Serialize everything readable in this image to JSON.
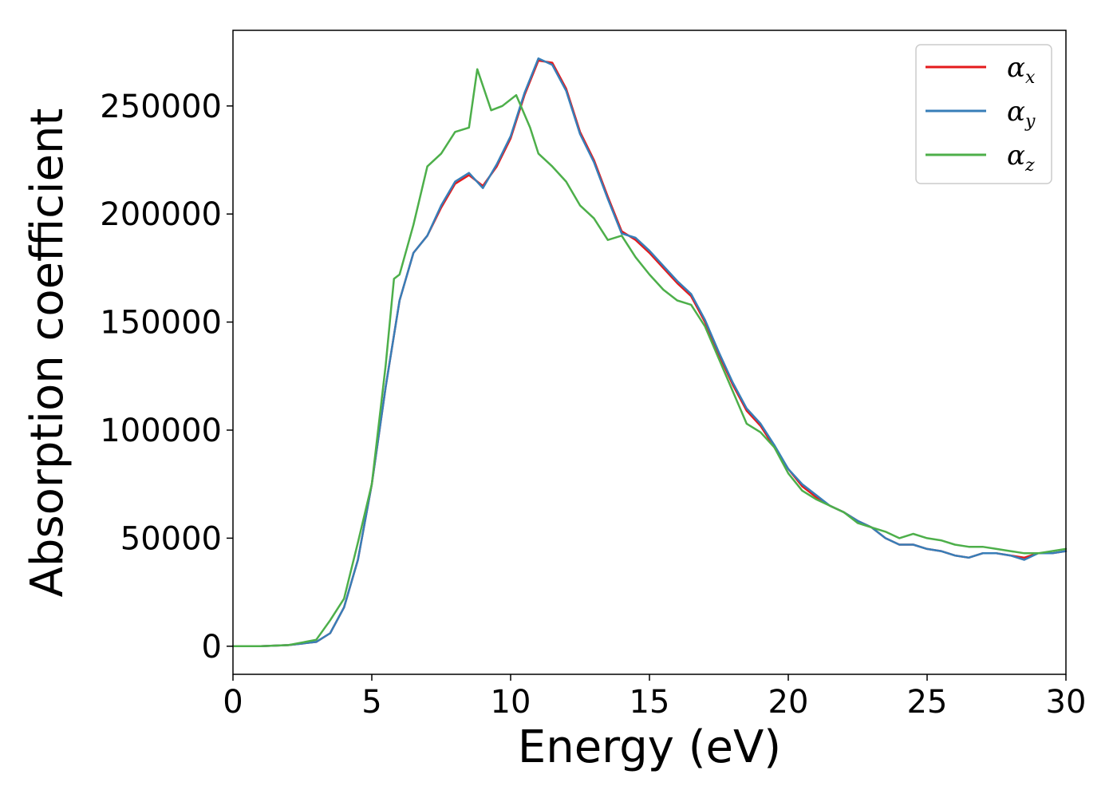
{
  "chart_data": {
    "type": "line",
    "title": "",
    "xlabel": "Energy (eV)",
    "ylabel": "Absorption coefficient",
    "xlim": [
      0,
      30
    ],
    "ylim": [
      -13000,
      285000
    ],
    "xticks": [
      0,
      5,
      10,
      15,
      20,
      25,
      30
    ],
    "yticks": [
      0,
      50000,
      100000,
      150000,
      200000,
      250000
    ],
    "grid": false,
    "legend_position": "top-right",
    "series": [
      {
        "name": "α",
        "subscript": "x",
        "color": "#e41a1c",
        "x": [
          0,
          1,
          2,
          3,
          3.5,
          4,
          4.5,
          5,
          5.5,
          6,
          6.5,
          7,
          7.5,
          8,
          8.5,
          9,
          9.5,
          10,
          10.5,
          11,
          11.5,
          12,
          12.5,
          13,
          13.5,
          14,
          14.5,
          15,
          15.5,
          16,
          16.5,
          17,
          17.5,
          18,
          18.5,
          19,
          19.5,
          20,
          20.5,
          21,
          21.5,
          22,
          22.5,
          23,
          23.5,
          24,
          24.5,
          25,
          25.5,
          26,
          26.5,
          27,
          27.5,
          28,
          28.5,
          29,
          29.5,
          30
        ],
        "y": [
          0,
          0,
          500,
          2000,
          6000,
          18000,
          40000,
          75000,
          120000,
          160000,
          182000,
          190000,
          203000,
          214000,
          218000,
          213000,
          222000,
          235000,
          255000,
          271000,
          270000,
          258000,
          238000,
          225000,
          208000,
          192000,
          188000,
          182000,
          175000,
          168000,
          162000,
          150000,
          135000,
          121000,
          109000,
          102000,
          92000,
          82000,
          74000,
          69000,
          65000,
          62000,
          58000,
          55000,
          50000,
          47000,
          47000,
          45000,
          44000,
          42000,
          41000,
          43000,
          43000,
          42000,
          41000,
          43000,
          43000,
          44000
        ]
      },
      {
        "name": "α",
        "subscript": "y",
        "color": "#377eb8",
        "x": [
          0,
          1,
          2,
          3,
          3.5,
          4,
          4.5,
          5,
          5.5,
          6,
          6.5,
          7,
          7.5,
          8,
          8.5,
          9,
          9.5,
          10,
          10.5,
          11,
          11.5,
          12,
          12.5,
          13,
          13.5,
          14,
          14.5,
          15,
          15.5,
          16,
          16.5,
          17,
          17.5,
          18,
          18.5,
          19,
          19.5,
          20,
          20.5,
          21,
          21.5,
          22,
          22.5,
          23,
          23.5,
          24,
          24.5,
          25,
          25.5,
          26,
          26.5,
          27,
          27.5,
          28,
          28.5,
          29,
          29.5,
          30
        ],
        "y": [
          0,
          0,
          500,
          2000,
          6000,
          18000,
          40000,
          75000,
          120000,
          160000,
          182000,
          190000,
          204000,
          215000,
          219000,
          212000,
          223000,
          236000,
          256000,
          272000,
          269000,
          257000,
          237000,
          224000,
          207000,
          191000,
          189000,
          183000,
          176000,
          169000,
          163000,
          151000,
          136000,
          122000,
          110000,
          103000,
          93000,
          82000,
          75000,
          70000,
          65000,
          62000,
          58000,
          55000,
          50000,
          47000,
          47000,
          45000,
          44000,
          42000,
          41000,
          43000,
          43000,
          42000,
          40000,
          43000,
          43000,
          44000
        ]
      },
      {
        "name": "α",
        "subscript": "z",
        "color": "#4daf4a",
        "x": [
          0,
          1,
          2,
          3,
          3.5,
          4,
          4.5,
          5,
          5.5,
          5.8,
          6,
          6.5,
          7,
          7.5,
          8,
          8.5,
          8.8,
          9.3,
          9.7,
          10.2,
          10.7,
          11,
          11.5,
          12,
          12.5,
          13,
          13.5,
          14,
          14.5,
          15,
          15.5,
          16,
          16.5,
          17,
          17.5,
          18,
          18.5,
          19,
          19.5,
          20,
          20.5,
          21,
          21.5,
          22,
          22.5,
          23,
          23.5,
          24,
          24.5,
          25,
          25.5,
          26,
          26.5,
          27,
          27.5,
          28,
          28.5,
          29,
          29.5,
          30
        ],
        "y": [
          0,
          0,
          500,
          3000,
          12000,
          22000,
          48000,
          75000,
          130000,
          170000,
          172000,
          195000,
          222000,
          228000,
          238000,
          240000,
          267000,
          248000,
          250000,
          255000,
          240000,
          228000,
          222000,
          215000,
          204000,
          198000,
          188000,
          190000,
          180000,
          172000,
          165000,
          160000,
          158000,
          148000,
          133000,
          118000,
          103000,
          99000,
          92000,
          80000,
          72000,
          68000,
          65000,
          62000,
          57000,
          55000,
          53000,
          50000,
          52000,
          50000,
          49000,
          47000,
          46000,
          46000,
          45000,
          44000,
          43000,
          43000,
          44000,
          45000
        ]
      }
    ]
  }
}
